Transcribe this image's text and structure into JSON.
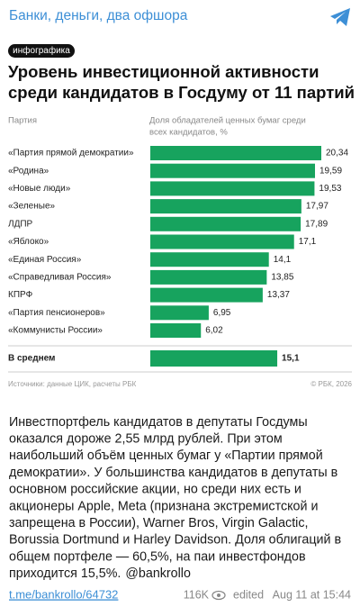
{
  "header": {
    "channel": "Банки, деньги, два офшора"
  },
  "chart_data": {
    "type": "hbar",
    "tag": "инфографика",
    "title_lines": [
      "Уровень инвестиционной активности",
      "среди кандидатов в Госдуму от 11 партий"
    ],
    "category_header": "Партия",
    "value_header_lines": [
      "Доля обладателей ценных бумаг среди",
      "всех кандидатов, %"
    ],
    "categories": [
      "«Партия прямой демократии»",
      "«Родина»",
      "«Новые люди»",
      "«Зеленые»",
      "ЛДПР",
      "«Яблоко»",
      "«Единая Россия»",
      "«Справедливая Россия»",
      "КПРФ",
      "«Партия пенсионеров»",
      "«Коммунисты России»"
    ],
    "values": [
      20.34,
      19.59,
      19.53,
      17.97,
      17.89,
      17.1,
      14.1,
      13.85,
      13.37,
      6.95,
      6.02
    ],
    "value_labels": [
      "20,34",
      "19,59",
      "19,53",
      "17,97",
      "17,89",
      "17,1",
      "14,1",
      "13,85",
      "13,37",
      "6,95",
      "6,02"
    ],
    "color": "#17a35e",
    "average_label": "В среднем",
    "average_value": 15.1,
    "average_value_label": "15,1",
    "source": "Источники: данные ЦИК, расчеты РБК",
    "copyright": "© РБК, 2026"
  },
  "post": {
    "lines": [
      "Инвестпортфель кандидатов в депутаты Госдумы",
      "оказался дороже 2,55 млрд рублей. При этом",
      "наибольший объём ценных бумаг у «Партии прямой",
      "демократии». У большинства кандидатов в депутаты в",
      "основном российские акции, но среди них есть и",
      "акционеры Apple, Meta (признана экстремистской и",
      "запрещена в России), Warner Bros, Virgin Galactic,",
      "Borussia Dortmund и Harley Davidson. Доля облигаций в",
      "общем портфеле — 60,5%, на паи инвестфондов",
      "приходится 15,5%."
    ],
    "mention": "@bankrollo"
  },
  "footer": {
    "link": "t.me/bankrollo/64732",
    "views": "116K",
    "edited": "edited",
    "date": "Aug 11 at 15:44"
  }
}
